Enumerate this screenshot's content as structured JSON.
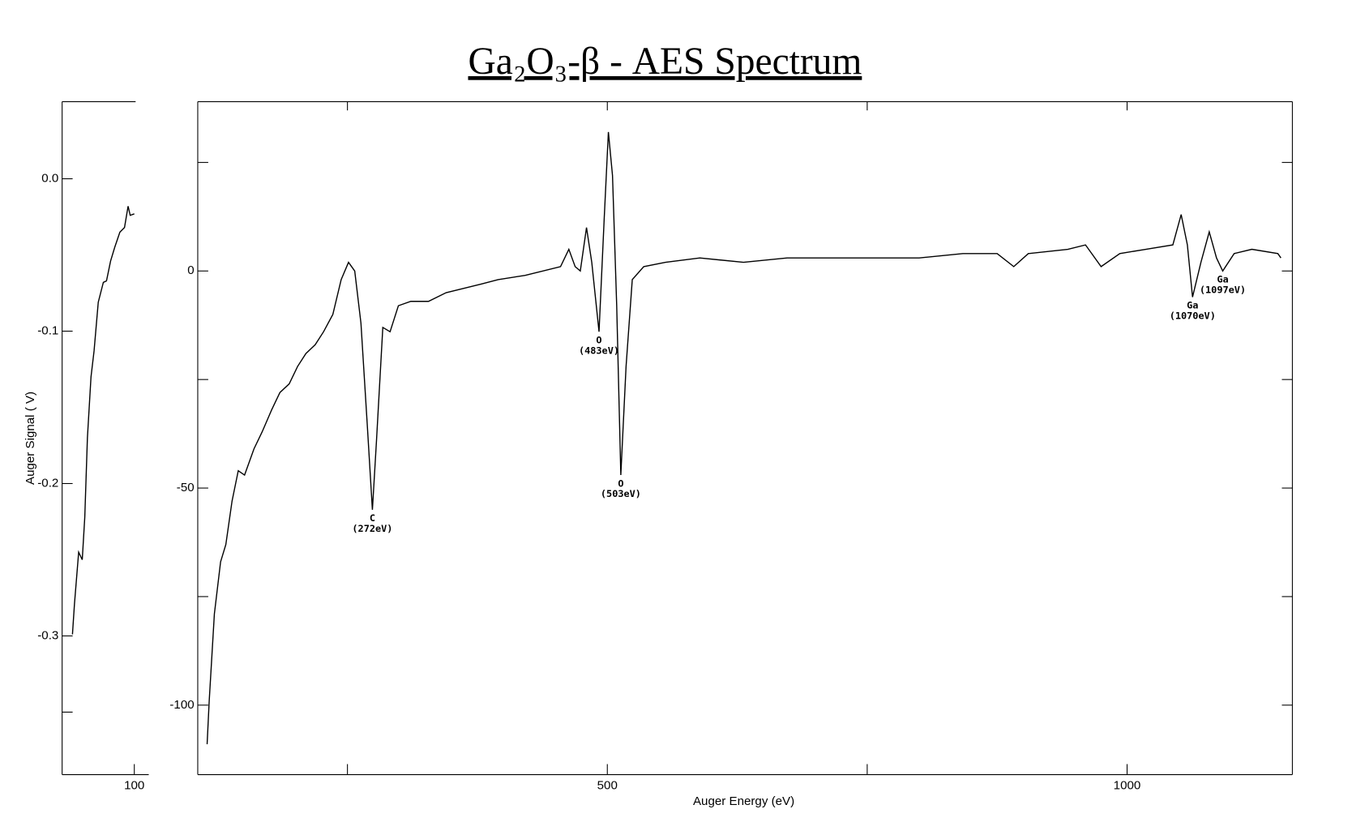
{
  "title": "Ga₂O₃-β - AES Spectrum",
  "chart_data": [
    {
      "type": "line",
      "ylabel": "Auger Signal ( V)",
      "xlim": [
        30,
        114
      ],
      "xticks": [
        100
      ],
      "ylim": [
        -0.391,
        0.0506
      ],
      "yticks": [
        {
          "value": 0,
          "label": "0.0"
        },
        -0.1,
        -0.2,
        -0.3
      ],
      "yminor_ticks": [
        -0.35
      ],
      "color": "#000000",
      "x": [
        40,
        42,
        46,
        49.5,
        52,
        54.5,
        58,
        61,
        65,
        70,
        73,
        77,
        81,
        86,
        90.5,
        94,
        96,
        100
      ],
      "values": [
        -0.299,
        -0.279,
        -0.245,
        -0.25,
        -0.222,
        -0.17,
        -0.13,
        -0.113,
        -0.081,
        -0.068,
        -0.067,
        -0.054,
        -0.045,
        -0.035,
        -0.032,
        -0.018,
        -0.024,
        -0.023
      ]
    },
    {
      "type": "line",
      "xlabel": "Auger Energy (eV)",
      "xlim": [
        106,
        1159
      ],
      "xticks": [
        500,
        1000
      ],
      "xminor_ticks": [
        250,
        750
      ],
      "ylim": [
        -116,
        39
      ],
      "yticks": [
        0,
        -50,
        -100
      ],
      "yminor_ticks": [
        25,
        -25,
        -75
      ],
      "color": "#000000",
      "x": [
        115,
        117,
        122,
        128,
        133,
        139,
        145,
        151,
        160,
        168,
        177,
        185,
        194,
        202,
        210,
        219,
        227,
        236,
        244,
        251,
        257,
        263,
        269,
        274,
        278,
        284,
        291,
        299,
        311,
        328,
        345,
        362,
        379,
        395,
        421,
        455,
        463,
        469,
        474,
        480,
        485,
        492,
        497,
        501,
        505,
        509,
        513,
        518,
        524,
        535,
        556,
        589,
        631,
        673,
        715,
        758,
        800,
        842,
        875,
        891,
        905,
        943,
        960,
        975,
        993,
        1018,
        1044,
        1052,
        1058,
        1063,
        1071,
        1079,
        1086,
        1092,
        1103,
        1120,
        1145,
        1148
      ],
      "values": [
        -109,
        -99,
        -79,
        -67,
        -63,
        -53,
        -46,
        -47,
        -41,
        -37,
        -32,
        -28,
        -26,
        -22,
        -19,
        -17,
        -14,
        -10,
        -2,
        2,
        0,
        -12,
        -35,
        -55,
        -39,
        -13,
        -14,
        -8,
        -7,
        -7,
        -5,
        -4,
        -3,
        -2,
        -1,
        1,
        5,
        1,
        0,
        10,
        2,
        -14,
        12,
        32,
        22,
        -8,
        -47,
        -22,
        -2,
        1,
        2,
        3,
        2,
        3,
        3,
        3,
        3,
        4,
        4,
        1,
        4,
        5,
        6,
        1,
        4,
        5,
        6,
        13,
        6,
        -6,
        2,
        9,
        3,
        0,
        4,
        5,
        4,
        3
      ],
      "annotations": [
        {
          "text": [
            "C",
            "(272eV)"
          ],
          "x": 274,
          "y": -55
        },
        {
          "text": [
            "O",
            "(483eV)"
          ],
          "x": 492,
          "y": -14
        },
        {
          "text": [
            "O",
            "(503eV)"
          ],
          "x": 513,
          "y": -47
        },
        {
          "text": [
            "Ga",
            "(1070eV)"
          ],
          "x": 1063,
          "y": -6
        },
        {
          "text": [
            "Ga",
            "(1097eV)"
          ],
          "x": 1092,
          "y": 0
        }
      ]
    }
  ]
}
